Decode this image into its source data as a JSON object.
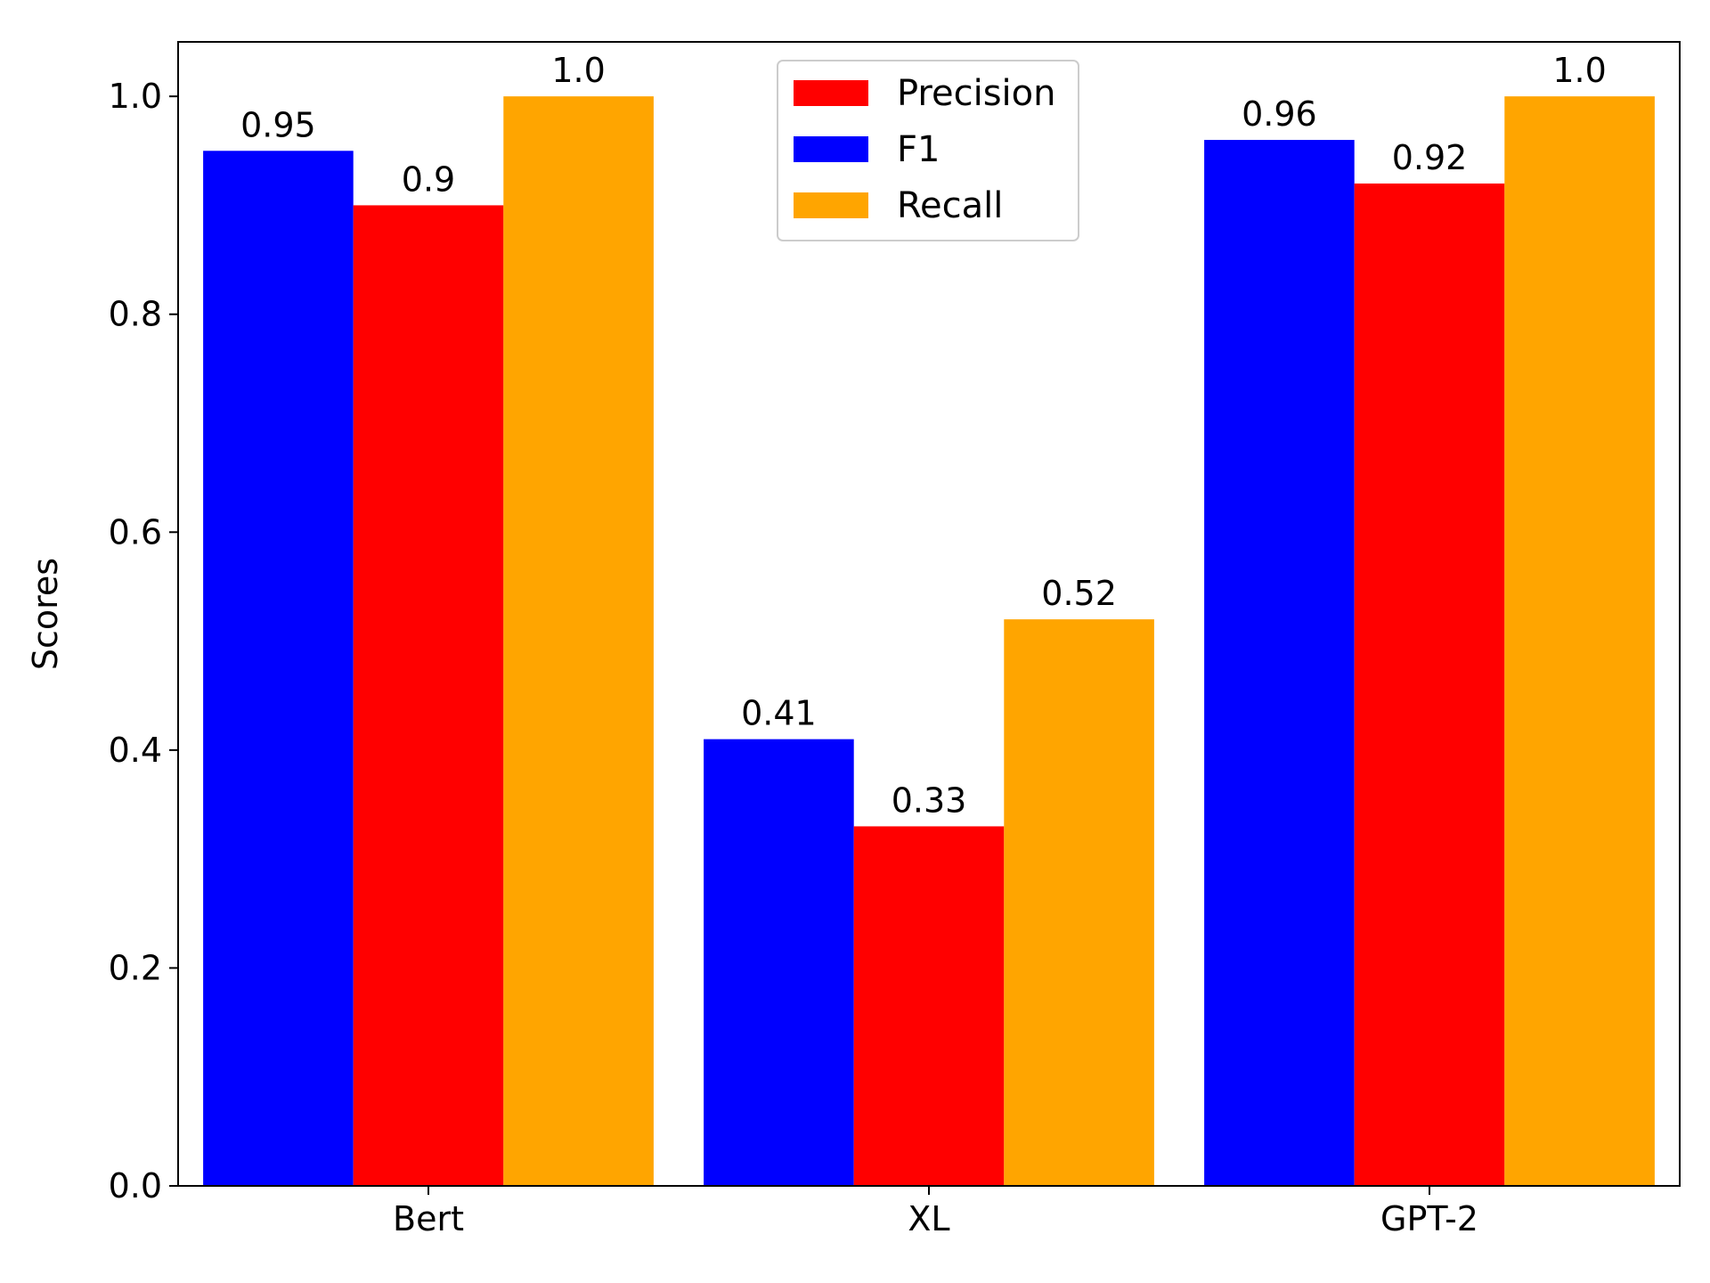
{
  "chart_data": {
    "type": "bar",
    "ylabel": "Scores",
    "xlabel": "",
    "ylim": [
      0,
      1.05
    ],
    "yticks": [
      "0.0",
      "0.2",
      "0.4",
      "0.6",
      "0.8",
      "1.0"
    ],
    "categories": [
      "Bert",
      "XL",
      "GPT-2"
    ],
    "legend_position": "top-center",
    "grid": false,
    "series": [
      {
        "name": "F1",
        "color": "#0000ff",
        "values": [
          0.95,
          0.41,
          0.96
        ],
        "labels": [
          "0.95",
          "0.41",
          "0.96"
        ]
      },
      {
        "name": "Precision",
        "color": "#ff0000",
        "values": [
          0.9,
          0.33,
          0.92
        ],
        "labels": [
          "0.9",
          "0.33",
          "0.92"
        ]
      },
      {
        "name": "Recall",
        "color": "#ffa500",
        "values": [
          1.0,
          0.52,
          1.0
        ],
        "labels": [
          "1.0",
          "0.52",
          "1.0"
        ]
      }
    ],
    "legend_order": [
      "Precision",
      "F1",
      "Recall"
    ]
  }
}
